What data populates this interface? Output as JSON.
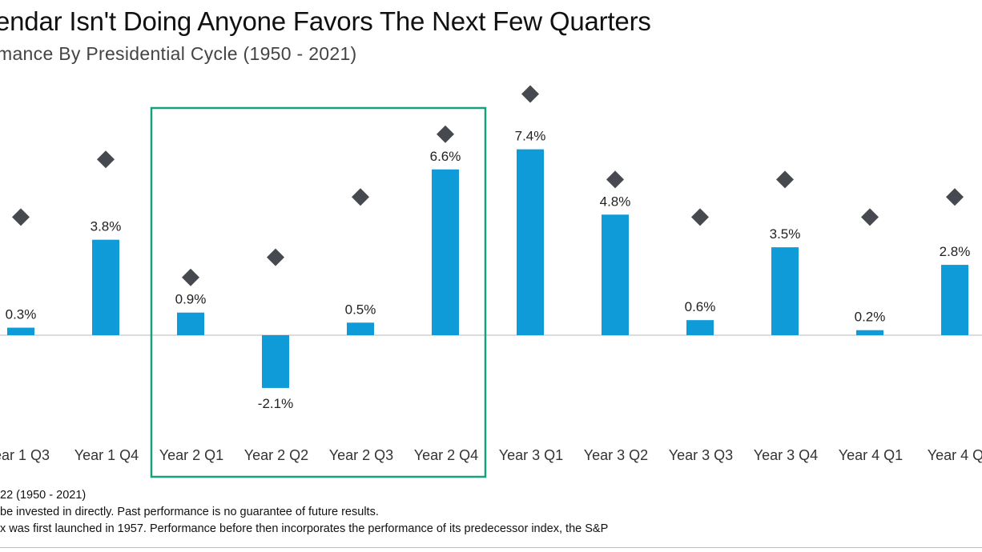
{
  "title": "endar Isn't Doing Anyone Favors The Next Few Quarters",
  "subtitle": "mance By Presidential Cycle (1950 - 2021)",
  "notes": [
    "22 (1950 - 2021)",
    "be invested in directly. Past performance is no guarantee of future results.",
    "x was first launched in 1957. Performance before then incorporates the performance of its  predecessor index, the S&P"
  ],
  "colors": {
    "bar": "#0f9ad8",
    "marker": "#46494f",
    "highlight": "#18a07c",
    "axis": "#c8c8c8"
  },
  "chart_data": {
    "type": "bar",
    "categories": [
      "ear 1 Q3",
      "Year 1 Q4",
      "Year 2 Q1",
      "Year 2 Q2",
      "Year 2 Q3",
      "Year 2 Q4",
      "Year 3 Q1",
      "Year 3 Q2",
      "Year 3 Q3",
      "Year 3 Q4",
      "Year 4 Q1",
      "Year 4 Q"
    ],
    "series": [
      {
        "kind": "bar",
        "values": [
          0.3,
          3.8,
          0.9,
          -2.1,
          0.5,
          6.6,
          7.4,
          4.8,
          0.6,
          3.5,
          0.2,
          2.8
        ],
        "labels": [
          "0.3%",
          "3.8%",
          "0.9%",
          "-2.1%",
          "0.5%",
          "6.6%",
          "7.4%",
          "4.8%",
          "0.6%",
          "3.5%",
          "0.2%",
          "2.8%"
        ]
      },
      {
        "kind": "marker",
        "values": [
          4.7,
          7.0,
          2.3,
          3.1,
          5.5,
          8.0,
          9.6,
          6.2,
          4.7,
          6.2,
          4.7,
          5.5
        ]
      }
    ],
    "highlight": {
      "from": "Year 2 Q1",
      "to": "Year 2 Q4"
    },
    "ylim": [
      -4.8,
      13.4
    ],
    "grid": false,
    "legend": "none"
  }
}
